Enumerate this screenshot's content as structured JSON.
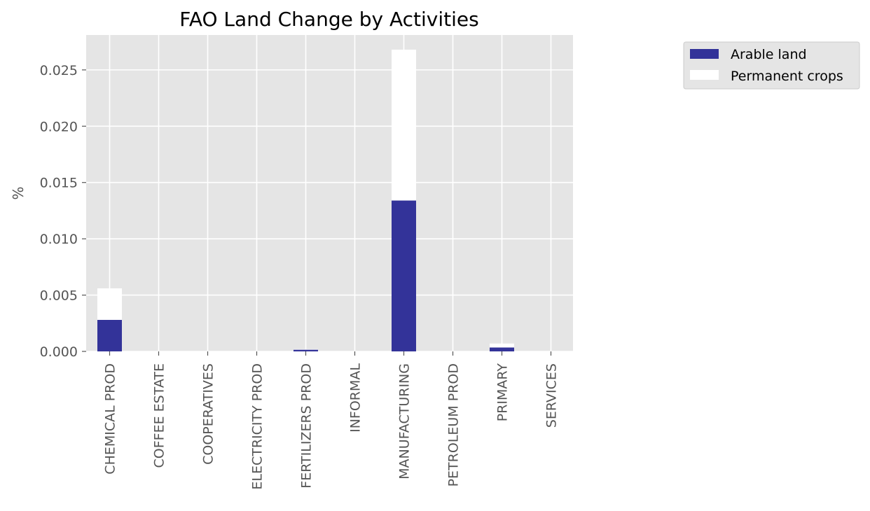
{
  "chart_data": {
    "type": "bar",
    "stacked": true,
    "title": "FAO Land Change by Activities",
    "xlabel": "",
    "ylabel": "%",
    "categories": [
      "CHEMICAL PROD",
      "COFFEE ESTATE",
      "COOPERATIVES",
      "ELECTRICITY PROD",
      "FERTILIZERS PROD",
      "INFORMAL",
      "MANUFACTURING",
      "PETROLEUM PROD",
      "PRIMARY",
      "SERVICES"
    ],
    "series": [
      {
        "name": "Arable land",
        "color": "#333399",
        "values": [
          0.0028,
          0,
          0,
          0,
          0.00015,
          0,
          0.0134,
          0,
          0.00035,
          0
        ]
      },
      {
        "name": "Permanent crops",
        "color": "#ffffff",
        "values": [
          0.0028,
          0,
          0,
          0,
          5e-05,
          0,
          0.0134,
          0,
          0.00035,
          0
        ]
      }
    ],
    "yticks": [
      "0.000",
      "0.005",
      "0.010",
      "0.015",
      "0.020",
      "0.025"
    ],
    "ylim": [
      0,
      0.0281
    ],
    "grid": true,
    "legend_position": "outside-top-right",
    "background": "#e5e5e5"
  }
}
